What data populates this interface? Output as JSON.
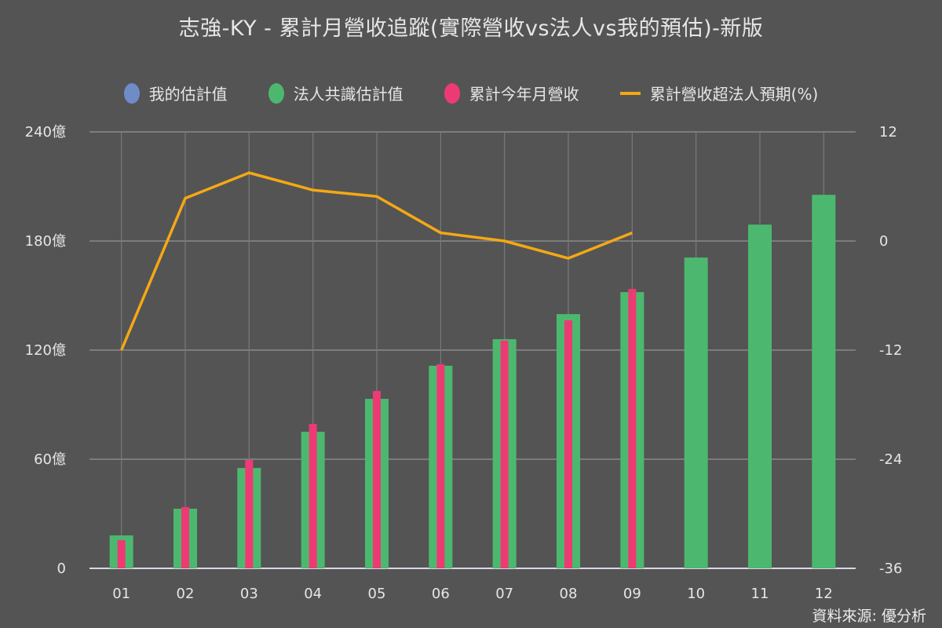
{
  "title": "志強-KY - 累計月營收追蹤(實際營收vs法人vs我的預估)-新版",
  "legend": [
    {
      "label": "我的估計值",
      "type": "dot",
      "color": "#6f8cc8"
    },
    {
      "label": "法人共識估計值",
      "type": "dot",
      "color": "#4cb86f"
    },
    {
      "label": "累計今年月營收",
      "type": "dot",
      "color": "#ee3a74"
    },
    {
      "label": "累計營收超法人預期(%)",
      "type": "line",
      "color": "#f5a814"
    }
  ],
  "source": "資料來源: 優分析",
  "chart_data": {
    "type": "bar",
    "title": "志強-KY - 累計月營收追蹤(實際營收vs法人vs我的預估)-新版",
    "xlabel": "",
    "ylabel": "",
    "categories": [
      "01",
      "02",
      "03",
      "04",
      "05",
      "06",
      "07",
      "08",
      "09",
      "10",
      "11",
      "12"
    ],
    "y_left": {
      "ticks": [
        "0",
        "60億",
        "120億",
        "180億",
        "240億"
      ],
      "range": [
        0,
        240
      ],
      "unit": "億"
    },
    "y_right": {
      "ticks": [
        "-36",
        "-24",
        "-12",
        "0",
        "12"
      ],
      "range": [
        -36,
        12
      ],
      "unit": "%"
    },
    "grid": true,
    "legend_position": "top",
    "series": [
      {
        "name": "我的估計值",
        "type": "bar",
        "axis": "left",
        "color": "#6f8cc8",
        "values": [
          null,
          null,
          null,
          null,
          null,
          null,
          null,
          null,
          null,
          null,
          null,
          null
        ]
      },
      {
        "name": "法人共識估計值",
        "type": "bar",
        "axis": "left",
        "color": "#4cb86f",
        "values": [
          18.1,
          32.8,
          55.2,
          75.1,
          93.2,
          111.4,
          126.0,
          139.8,
          151.9,
          170.9,
          189.0,
          205.4
        ]
      },
      {
        "name": "累計今年月營收",
        "type": "bar",
        "axis": "left",
        "color": "#ee3a74",
        "values": [
          15.5,
          33.7,
          59.6,
          79.4,
          97.5,
          112.2,
          125.2,
          136.4,
          153.6,
          null,
          null,
          null
        ]
      },
      {
        "name": "累計營收超法人預期(%)",
        "type": "line",
        "axis": "right",
        "color": "#f5a814",
        "values": [
          -12.0,
          4.7,
          7.5,
          5.6,
          4.9,
          0.9,
          0.0,
          -1.9,
          0.9,
          null,
          null,
          null
        ]
      }
    ]
  }
}
